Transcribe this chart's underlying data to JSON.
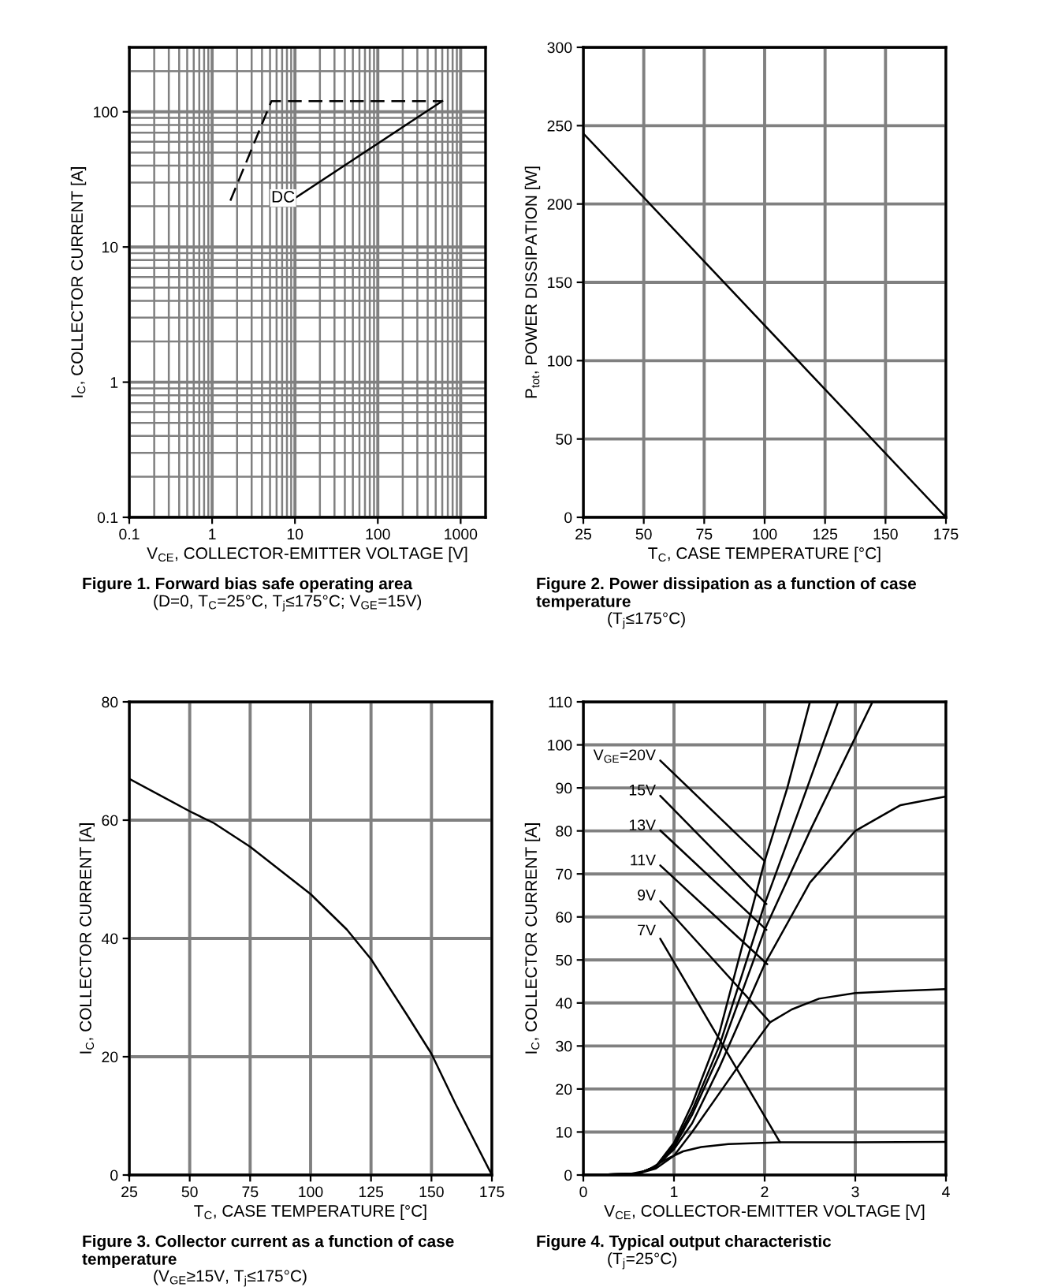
{
  "chart_data": [
    {
      "type": "line",
      "title": "Figure 1. Forward bias safe operating area",
      "subtitle": "(D=0, T$_{C}$=25°C, T$_{j}$≤175°C; V$_{GE}$=15V)",
      "xlabel": "V$_{CE}$, COLLECTOR-EMITTER VOLTAGE [V]",
      "ylabel": "I$_{C}$, COLLECTOR CURRENT [A]",
      "log": "xy",
      "xlim": [
        0.1,
        2000
      ],
      "ylim": [
        0.1,
        300
      ],
      "xticks": [
        0.1,
        1,
        10,
        100,
        1000
      ],
      "yticks": [
        0.1,
        1,
        10,
        100
      ],
      "grid": true,
      "marker": "none",
      "series": [
        {
          "color": "#000000",
          "line_style": "dashed",
          "x": [
            1.66,
            5.2,
            600
          ],
          "values": [
            22,
            120,
            120
          ]
        },
        {
          "color": "#000000",
          "line_style": "solid",
          "x": [
            10,
            600
          ],
          "values": [
            23,
            120
          ]
        }
      ],
      "annotations": [
        {
          "text": "DC",
          "x": 10,
          "y": 23
        }
      ]
    },
    {
      "type": "line",
      "title": "Figure 2. Power dissipation as a function of case temperature",
      "subtitle": "(T$_{j}$≤175°C)",
      "xlabel": "T$_{C}$, CASE TEMPERATURE [°C]",
      "ylabel": "P$_{tot}$, POWER DISSIPATION [W]",
      "xlim": [
        25,
        175
      ],
      "ylim": [
        0,
        300
      ],
      "xticks": [
        25,
        50,
        75,
        100,
        125,
        150,
        175
      ],
      "yticks": [
        0,
        50,
        100,
        150,
        200,
        250,
        300
      ],
      "grid": true,
      "marker": "none",
      "series": [
        {
          "color": "#000000",
          "line_style": "solid",
          "x": [
            25,
            175
          ],
          "values": [
            245,
            0
          ]
        }
      ]
    },
    {
      "type": "line",
      "title": "Figure 3. Collector current as a function of case temperature",
      "subtitle": "(V$_{GE}$≥15V, T$_{j}$≤175°C)",
      "xlabel": "T$_{C}$, CASE TEMPERATURE [°C]",
      "ylabel": "I$_{C}$, COLLECTOR CURRENT [A]",
      "xlim": [
        25,
        175
      ],
      "ylim": [
        0,
        80
      ],
      "xticks": [
        25,
        50,
        75,
        100,
        125,
        150,
        175
      ],
      "yticks": [
        0,
        20,
        40,
        60,
        80
      ],
      "grid": true,
      "marker": "none",
      "series": [
        {
          "color": "#000000",
          "line_style": "solid",
          "x": [
            25,
            50,
            60,
            75,
            100,
            115,
            125,
            140,
            150,
            160,
            175
          ],
          "values": [
            67,
            61.5,
            59.5,
            55.5,
            47.5,
            41.5,
            36.5,
            27,
            20.5,
            12,
            0
          ]
        }
      ]
    },
    {
      "type": "line",
      "title": "Figure 4. Typical output characteristic",
      "subtitle": "(T$_{j}$=25°C)",
      "xlabel": "V$_{CE}$, COLLECTOR-EMITTER VOLTAGE [V]",
      "ylabel": "I$_{C}$, COLLECTOR CURRENT [A]",
      "xlim": [
        0,
        4
      ],
      "ylim": [
        0,
        110
      ],
      "xticks": [
        0,
        1,
        2,
        3,
        4
      ],
      "yticks": [
        0,
        10,
        20,
        30,
        40,
        50,
        60,
        70,
        80,
        90,
        100,
        110
      ],
      "grid": true,
      "marker": "none",
      "series": [
        {
          "color": "#000000",
          "line_style": "solid",
          "x": [
            0,
            0.6,
            0.8,
            1,
            1.2,
            1.5,
            2,
            2.25,
            2.5
          ],
          "values": [
            0,
            0.3,
            2,
            7.5,
            16.5,
            33,
            73,
            90,
            110
          ]
        },
        {
          "color": "#000000",
          "line_style": "solid",
          "x": [
            0,
            0.6,
            0.8,
            1,
            1.2,
            1.5,
            2,
            2.4,
            2.81
          ],
          "values": [
            0,
            0.3,
            2,
            7,
            15,
            30,
            63,
            86,
            110
          ]
        },
        {
          "color": "#000000",
          "line_style": "solid",
          "x": [
            0,
            0.6,
            0.8,
            1,
            1.2,
            1.5,
            2,
            2.5,
            3.19
          ],
          "values": [
            0,
            0.3,
            2,
            6.5,
            14,
            28,
            57,
            80,
            110
          ]
        },
        {
          "color": "#000000",
          "line_style": "solid",
          "x": [
            0,
            0.6,
            0.8,
            1,
            1.2,
            1.5,
            2,
            2.5,
            3,
            3.5,
            4
          ],
          "values": [
            0,
            0.3,
            2,
            6,
            12,
            25,
            49,
            68,
            80,
            86,
            88
          ]
        },
        {
          "color": "#000000",
          "line_style": "solid",
          "x": [
            0,
            0.6,
            0.8,
            1,
            1.2,
            1.5,
            1.8,
            2.06,
            2.3,
            2.6,
            3,
            3.5,
            4
          ],
          "values": [
            0,
            0.3,
            1.5,
            4.5,
            10,
            19,
            28,
            35.5,
            38.5,
            41,
            42.3,
            42.8,
            43.2
          ]
        },
        {
          "color": "#000000",
          "line_style": "solid",
          "x": [
            0,
            0.5,
            0.7,
            0.9,
            1.1,
            1.3,
            1.6,
            2.17,
            3,
            4
          ],
          "values": [
            0,
            0.2,
            1,
            3.5,
            5.5,
            6.5,
            7.2,
            7.6,
            7.6,
            7.7
          ]
        }
      ],
      "annotations": [
        {
          "text": "V$_{GE}$=20V",
          "x": 2.0,
          "y": 73
        },
        {
          "text": "15V",
          "x": 2.02,
          "y": 63
        },
        {
          "text": "13V",
          "x": 2.02,
          "y": 57
        },
        {
          "text": "11V",
          "x": 2.03,
          "y": 49
        },
        {
          "text": "9V",
          "x": 2.06,
          "y": 35.5
        },
        {
          "text": "7V",
          "x": 2.17,
          "y": 7.6
        }
      ]
    }
  ]
}
